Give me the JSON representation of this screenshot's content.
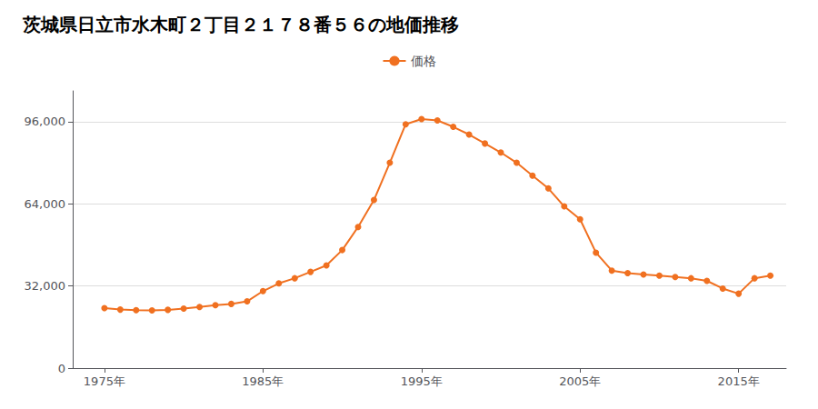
{
  "chart_data": {
    "type": "line",
    "title": "茨城県日立市水木町２丁目２１７８番５６の地価推移",
    "x": [
      1975,
      1976,
      1977,
      1978,
      1979,
      1980,
      1981,
      1982,
      1983,
      1984,
      1985,
      1986,
      1987,
      1988,
      1989,
      1990,
      1991,
      1992,
      1993,
      1994,
      1995,
      1996,
      1997,
      1998,
      1999,
      2000,
      2001,
      2002,
      2003,
      2004,
      2005,
      2006,
      2007,
      2008,
      2009,
      2010,
      2011,
      2012,
      2013,
      2014,
      2015,
      2016,
      2017
    ],
    "series": [
      {
        "name": "価格",
        "color": "#f07020",
        "marker": "circle",
        "values": [
          23400,
          22800,
          22600,
          22500,
          22700,
          23200,
          23800,
          24500,
          25000,
          26000,
          30000,
          33000,
          35000,
          37500,
          40000,
          46000,
          55000,
          65500,
          80000,
          95000,
          97000,
          96500,
          94000,
          91000,
          87500,
          84000,
          80000,
          75000,
          70000,
          63000,
          58000,
          45000,
          38000,
          37000,
          36500,
          36000,
          35500,
          35000,
          34000,
          31000,
          29000,
          35000,
          36000
        ]
      }
    ],
    "xlim": [
      1973,
      2018
    ],
    "xticks": [
      {
        "value": 1975,
        "label": "1975年"
      },
      {
        "value": 1985,
        "label": "1985年"
      },
      {
        "value": 1995,
        "label": "1995年"
      },
      {
        "value": 2005,
        "label": "2005年"
      },
      {
        "value": 2015,
        "label": "2015年"
      }
    ],
    "ylim": [
      0,
      108000
    ],
    "yticks": [
      0,
      {
        "value": 32000,
        "label": "32,000"
      },
      {
        "value": 64000,
        "label": "64,000"
      },
      {
        "value": 96000,
        "label": "96,000"
      }
    ],
    "grid": true,
    "legend": "top"
  }
}
